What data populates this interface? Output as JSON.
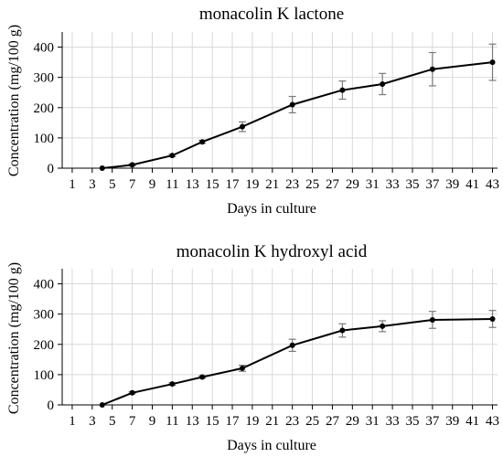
{
  "chart_data": [
    {
      "type": "line",
      "title": "monacolin K lactone",
      "xlabel": "Days in culture",
      "ylabel": "Concentration (mg/100 g)",
      "xlim": [
        0,
        43.5
      ],
      "ylim": [
        0,
        450
      ],
      "xticks": [
        1,
        3,
        5,
        7,
        9,
        11,
        13,
        15,
        17,
        19,
        21,
        23,
        25,
        27,
        29,
        31,
        33,
        35,
        37,
        39,
        41,
        43
      ],
      "yticks": [
        0,
        100,
        200,
        300,
        400
      ],
      "grid": true,
      "x": [
        4,
        7,
        11,
        14,
        18,
        23,
        28,
        32,
        37,
        43
      ],
      "y": [
        0,
        11,
        42,
        87,
        137,
        210,
        258,
        278,
        327,
        350
      ],
      "yerr": [
        0,
        3,
        4,
        5,
        16,
        27,
        30,
        35,
        55,
        60
      ]
    },
    {
      "type": "line",
      "title": "monacolin K hydroxyl acid",
      "xlabel": "Days in culture",
      "ylabel": "Concentration (mg/100 g)",
      "xlim": [
        0,
        43.5
      ],
      "ylim": [
        0,
        450
      ],
      "xticks": [
        1,
        3,
        5,
        7,
        9,
        11,
        13,
        15,
        17,
        19,
        21,
        23,
        25,
        27,
        29,
        31,
        33,
        35,
        37,
        39,
        41,
        43
      ],
      "yticks": [
        0,
        100,
        200,
        300,
        400
      ],
      "grid": true,
      "x": [
        4,
        7,
        11,
        14,
        18,
        23,
        28,
        32,
        37,
        43
      ],
      "y": [
        0,
        40,
        69,
        92,
        121,
        197,
        246,
        260,
        281,
        284
      ],
      "yerr": [
        0,
        3,
        4,
        4,
        10,
        20,
        22,
        18,
        28,
        28
      ]
    }
  ]
}
